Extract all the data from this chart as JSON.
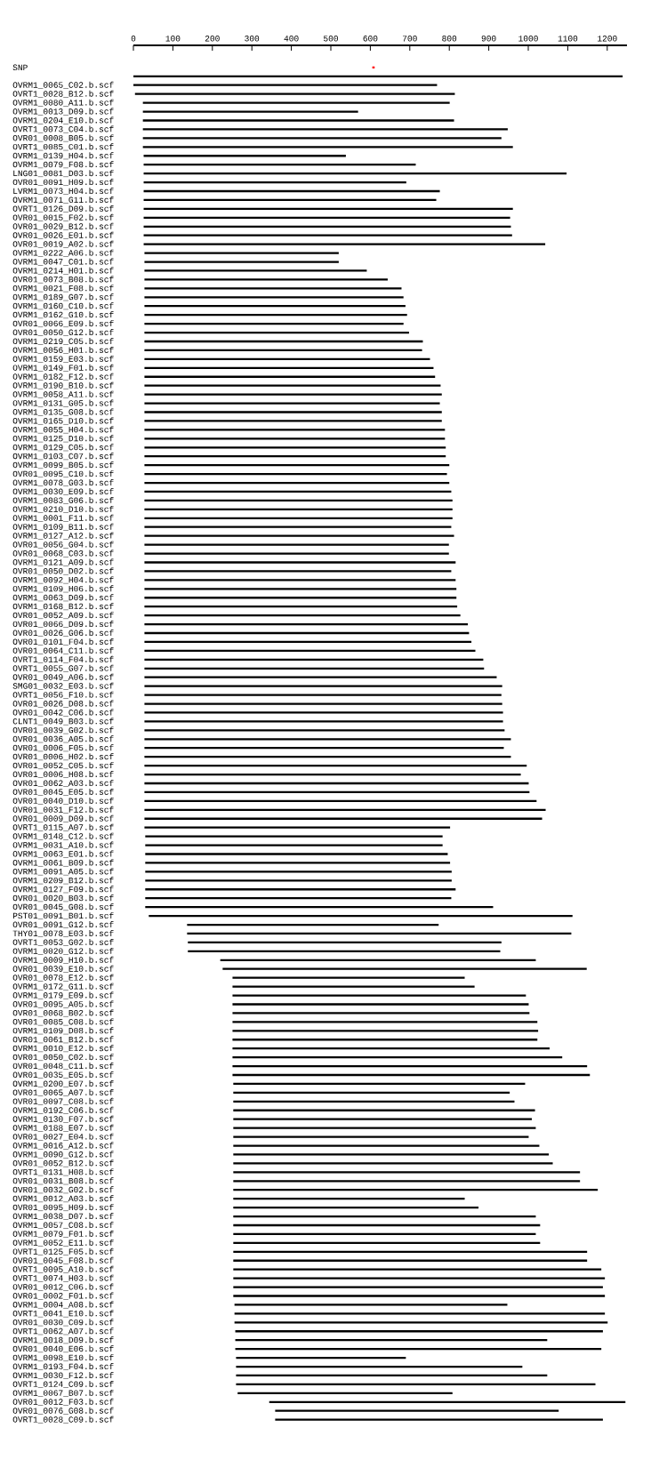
{
  "chart_data": {
    "type": "bar",
    "orientation": "horizontal",
    "categories": [
      "SNP",
      null,
      "OVRM1_0065_C02.b.scf",
      "OVRT1_0028_B12.b.scf",
      "OVRM1_0080_A11.b.scf",
      "OVRM1_0013_D09.b.scf",
      "OVRM1_0204_E10.b.scf",
      "OVRT1_0073_C04.b.scf",
      "OVR01_0008_B05.b.scf",
      "OVRT1_0085_C01.b.scf",
      "OVRM1_0139_H04.b.scf",
      "OVRM1_0079_F08.b.scf",
      "LNG01_0081_D03.b.scf",
      "OVR01_0091_H09.b.scf",
      "LVRM1_0073_H04.b.scf",
      "OVRM1_0071_G11.b.scf",
      "OVRT1_0126_D09.b.scf",
      "OVR01_0015_F02.b.scf",
      "OVR01_0029_B12.b.scf",
      "OVR01_0026_E01.b.scf",
      "OVR01_0019_A02.b.scf",
      "OVRM1_0222_A06.b.scf",
      "OVRM1_0047_C01.b.scf",
      "OVRM1_0214_H01.b.scf",
      "OVR01_0073_B08.b.scf",
      "OVRM1_0021_F08.b.scf",
      "OVRM1_0189_G07.b.scf",
      "OVRM1_0160_C10.b.scf",
      "OVRM1_0162_G10.b.scf",
      "OVR01_0066_E09.b.scf",
      "OVR01_0050_G12.b.scf",
      "OVRM1_0219_C05.b.scf",
      "OVRM1_0056_H01.b.scf",
      "OVRM1_0159_E03.b.scf",
      "OVRM1_0149_F01.b.scf",
      "OVRM1_0182_F12.b.scf",
      "OVRM1_0190_B10.b.scf",
      "OVRM1_0058_A11.b.scf",
      "OVRM1_0131_G05.b.scf",
      "OVRM1_0135_G08.b.scf",
      "OVRM1_0165_D10.b.scf",
      "OVRM1_0055_H04.b.scf",
      "OVRM1_0125_D10.b.scf",
      "OVRM1_0129_C05.b.scf",
      "OVRM1_0103_C07.b.scf",
      "OVRM1_0099_B05.b.scf",
      "OVR01_0095_C10.b.scf",
      "OVRM1_0078_G03.b.scf",
      "OVRM1_0030_E09.b.scf",
      "OVRM1_0083_G06.b.scf",
      "OVRM1_0210_D10.b.scf",
      "OVRM1_0001_F11.b.scf",
      "OVRM1_0109_B11.b.scf",
      "OVRM1_0127_A12.b.scf",
      "OVR01_0056_G04.b.scf",
      "OVR01_0068_C03.b.scf",
      "OVRM1_0121_A09.b.scf",
      "OVR01_0050_D02.b.scf",
      "OVRM1_0092_H04.b.scf",
      "OVRM1_0109_H06.b.scf",
      "OVRM1_0063_D09.b.scf",
      "OVRM1_0168_B12.b.scf",
      "OVR01_0052_A09.b.scf",
      "OVR01_0066_D09.b.scf",
      "OVR01_0026_G06.b.scf",
      "OVR01_0101_F04.b.scf",
      "OVR01_0064_C11.b.scf",
      "OVRT1_0114_F04.b.scf",
      "OVRT1_0055_G07.b.scf",
      "OVR01_0049_A06.b.scf",
      "SMG01_0032_E03.b.scf",
      "OVRT1_0056_F10.b.scf",
      "OVR01_0026_D08.b.scf",
      "OVR01_0042_C06.b.scf",
      "CLNT1_0049_B03.b.scf",
      "OVR01_0039_G02.b.scf",
      "OVR01_0036_A05.b.scf",
      "OVR01_0006_F05.b.scf",
      "OVR01_0006_H02.b.scf",
      "OVR01_0052_C05.b.scf",
      "OVR01_0006_H08.b.scf",
      "OVR01_0062_A03.b.scf",
      "OVR01_0045_E05.b.scf",
      "OVR01_0040_D10.b.scf",
      "OVR01_0031_F12.b.scf",
      "OVR01_0009_D09.b.scf",
      "OVRT1_0115_A07.b.scf",
      "OVRM1_0148_C12.b.scf",
      "OVRM1_0031_A10.b.scf",
      "OVRM1_0063_E01.b.scf",
      "OVRM1_0061_B09.b.scf",
      "OVRM1_0091_A05.b.scf",
      "OVRM1_0209_B12.b.scf",
      "OVRM1_0127_F09.b.scf",
      "OVR01_0020_B03.b.scf",
      "OVR01_0045_G08.b.scf",
      "PST01_0091_B01.b.scf",
      "OVR01_0091_G12.b.scf",
      "THY01_0078_E03.b.scf",
      "OVRT1_0053_G02.b.scf",
      "OVRM1_0020_G12.b.scf",
      "OVRM1_0009_H10.b.scf",
      "OVR01_0039_E10.b.scf",
      "OVR01_0078_E12.b.scf",
      "OVRM1_0172_G11.b.scf",
      "OVRM1_0179_E09.b.scf",
      "OVR01_0095_A05.b.scf",
      "OVR01_0068_B02.b.scf",
      "OVR01_0085_C08.b.scf",
      "OVRM1_0109_D08.b.scf",
      "OVR01_0061_B12.b.scf",
      "OVRM1_0010_E12.b.scf",
      "OVR01_0050_C02.b.scf",
      "OVR01_0048_C11.b.scf",
      "OVR01_0035_E05.b.scf",
      "OVRM1_0200_E07.b.scf",
      "OVR01_0065_A07.b.scf",
      "OVR01_0097_C08.b.scf",
      "OVRM1_0192_C06.b.scf",
      "OVRM1_0130_F07.b.scf",
      "OVRM1_0188_E07.b.scf",
      "OVR01_0027_E04.b.scf",
      "OVRM1_0016_A12.b.scf",
      "OVRM1_0090_G12.b.scf",
      "OVR01_0052_B12.b.scf",
      "OVRT1_0131_H08.b.scf",
      "OVR01_0031_B08.b.scf",
      "OVR01_0032_G02.b.scf",
      "OVRM1_0012_A03.b.scf",
      "OVR01_0095_H09.b.scf",
      "OVRM1_0038_D07.b.scf",
      "OVRM1_0057_C08.b.scf",
      "OVRM1_0079_F01.b.scf",
      "OVRM1_0052_E11.b.scf",
      "OVRT1_0125_F05.b.scf",
      "OVR01_0045_F08.b.scf",
      "OVRT1_0095_A10.b.scf",
      "OVRT1_0074_H03.b.scf",
      "OVR01_0012_C06.b.scf",
      "OVR01_0002_F01.b.scf",
      "OVRM1_0004_A08.b.scf",
      "OVRT1_0041_E10.b.scf",
      "OVR01_0030_C09.b.scf",
      "OVRT1_0062_A07.b.scf",
      "OVRM1_0018_D09.b.scf",
      "OVR01_0040_E06.b.scf",
      "OVRM1_0098_E10.b.scf",
      "OVRM1_0193_F04.b.scf",
      "OVRM1_0030_F12.b.scf",
      "OVRT1_0124_C09.b.scf",
      "OVRM1_0067_B07.b.scf",
      "OVR01_0012_F03.b.scf",
      "OVR01_0076_G08.b.scf",
      "OVRT1_0028_C09.b.scf"
    ],
    "base": [
      605,
      0,
      0,
      4,
      24,
      24,
      24,
      24,
      24,
      24,
      26,
      26,
      26,
      26,
      26,
      26,
      26,
      26,
      26,
      26,
      26,
      28,
      28,
      28,
      28,
      28,
      28,
      28,
      28,
      28,
      28,
      28,
      28,
      28,
      28,
      28,
      28,
      28,
      28,
      28,
      28,
      28,
      28,
      28,
      28,
      28,
      28,
      28,
      28,
      28,
      28,
      28,
      28,
      28,
      28,
      28,
      28,
      28,
      28,
      28,
      28,
      28,
      28,
      28,
      28,
      28,
      28,
      28,
      28,
      28,
      28,
      28,
      28,
      28,
      28,
      28,
      28,
      28,
      28,
      28,
      28,
      28,
      28,
      28,
      28,
      28,
      28,
      30,
      30,
      30,
      30,
      30,
      30,
      30,
      30,
      30,
      39,
      136,
      136,
      138,
      138,
      220,
      226,
      251,
      251,
      251,
      251,
      251,
      251,
      251,
      251,
      251,
      251,
      251,
      251,
      253,
      253,
      253,
      253,
      253,
      253,
      253,
      253,
      253,
      253,
      253,
      253,
      253,
      253,
      253,
      253,
      253,
      253,
      253,
      253,
      253,
      253,
      253,
      253,
      253,
      256,
      256,
      256,
      258,
      258,
      258,
      260,
      260,
      260,
      260,
      264,
      344,
      359,
      359
    ],
    "values": [
      6,
      1239,
      769,
      810,
      777,
      545,
      788,
      924,
      908,
      937,
      512,
      689,
      1071,
      665,
      750,
      741,
      935,
      928,
      930,
      933,
      1017,
      492,
      492,
      563,
      616,
      651,
      656,
      661,
      665,
      656,
      670,
      705,
      703,
      723,
      732,
      736,
      750,
      753,
      748,
      753,
      753,
      761,
      761,
      763,
      763,
      772,
      766,
      772,
      777,
      780,
      780,
      780,
      777,
      784,
      771,
      771,
      788,
      777,
      788,
      790,
      790,
      792,
      800,
      819,
      822,
      828,
      838,
      858,
      860,
      892,
      906,
      904,
      906,
      908,
      908,
      912,
      928,
      910,
      928,
      968,
      953,
      973,
      975,
      993,
      1016,
      1007,
      774,
      753,
      753,
      766,
      772,
      776,
      776,
      786,
      775,
      881,
      1073,
      637,
      973,
      794,
      791,
      799,
      922,
      588,
      613,
      743,
      750,
      752,
      772,
      774,
      772,
      803,
      835,
      898,
      905,
      739,
      700,
      712,
      764,
      756,
      766,
      748,
      775,
      799,
      809,
      878,
      878,
      923,
      586,
      621,
      766,
      777,
      766,
      777,
      896,
      896,
      932,
      941,
      936,
      941,
      691,
      938,
      945,
      931,
      790,
      927,
      430,
      725,
      788,
      910,
      544,
      902,
      718,
      830
    ],
    "colors": [
      "#ff0000",
      "#000000",
      "#000000",
      "#000000",
      "#000000",
      "#000000",
      "#000000",
      "#000000",
      "#000000",
      "#000000",
      "#000000",
      "#000000",
      "#000000",
      "#000000",
      "#000000",
      "#000000",
      "#000000",
      "#000000",
      "#000000",
      "#000000",
      "#000000",
      "#000000",
      "#000000",
      "#000000",
      "#000000",
      "#000000",
      "#000000",
      "#000000",
      "#000000",
      "#000000",
      "#000000",
      "#000000",
      "#000000",
      "#000000",
      "#000000",
      "#000000",
      "#000000",
      "#000000",
      "#000000",
      "#000000",
      "#000000",
      "#000000",
      "#000000",
      "#000000",
      "#000000",
      "#000000",
      "#000000",
      "#000000",
      "#000000",
      "#000000",
      "#000000",
      "#000000",
      "#000000",
      "#000000",
      "#000000",
      "#000000",
      "#000000",
      "#000000",
      "#000000",
      "#000000",
      "#000000",
      "#000000",
      "#000000",
      "#000000",
      "#000000",
      "#000000",
      "#000000",
      "#000000",
      "#000000",
      "#000000",
      "#000000",
      "#000000",
      "#000000",
      "#000000",
      "#000000",
      "#000000",
      "#000000",
      "#000000",
      "#000000",
      "#000000",
      "#000000",
      "#000000",
      "#000000",
      "#000000",
      "#000000",
      "#000000",
      "#000000",
      "#000000",
      "#000000",
      "#000000",
      "#000000",
      "#000000",
      "#000000",
      "#000000",
      "#000000",
      "#000000",
      "#000000",
      "#000000",
      "#000000",
      "#000000",
      "#000000",
      "#000000",
      "#000000",
      "#000000",
      "#000000",
      "#000000",
      "#000000",
      "#000000",
      "#000000",
      "#000000",
      "#000000",
      "#000000",
      "#000000",
      "#000000",
      "#000000",
      "#000000",
      "#000000",
      "#000000",
      "#000000",
      "#000000",
      "#000000",
      "#000000",
      "#000000",
      "#000000",
      "#000000",
      "#000000",
      "#000000",
      "#000000",
      "#000000",
      "#000000",
      "#000000",
      "#000000",
      "#000000",
      "#000000",
      "#000000",
      "#000000",
      "#000000",
      "#000000",
      "#000000",
      "#000000",
      "#000000",
      "#000000",
      "#000000",
      "#000000",
      "#000000",
      "#000000",
      "#000000",
      "#000000",
      "#000000",
      "#000000",
      "#000000",
      "#000000",
      "#000000",
      "#000000"
    ],
    "xlim": [
      0,
      1250
    ],
    "xticks": [
      0,
      100,
      200,
      300,
      400,
      500,
      600,
      700,
      800,
      900,
      1000,
      1100,
      1200
    ]
  }
}
